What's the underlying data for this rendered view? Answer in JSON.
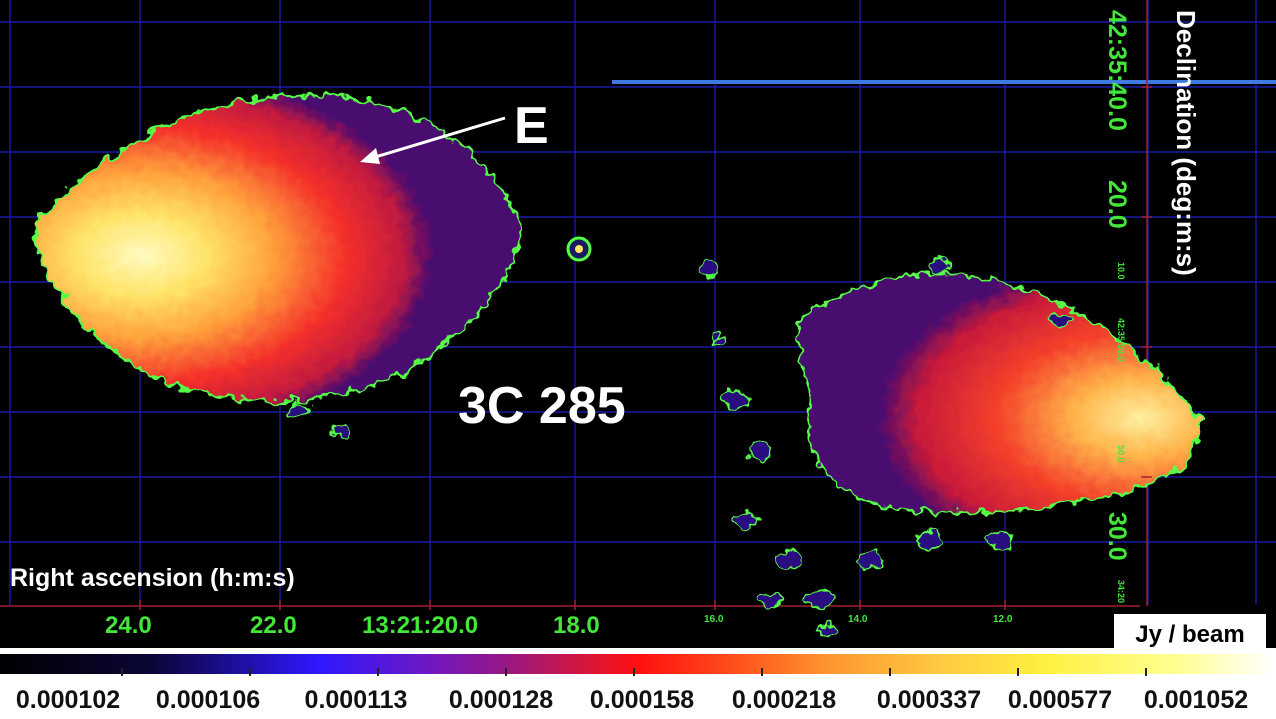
{
  "image": {
    "object_label": "3C 285",
    "feature_label": "E",
    "ra_axis_title": "Right ascension (h:m:s)",
    "dec_axis_title": "Declination (deg:m:s)",
    "ra_ticks_major": [
      "24.0",
      "22.0",
      "13:21:20.0",
      "18.0"
    ],
    "ra_ticks_small": [
      "16.0",
      "14.0",
      "12.0"
    ],
    "dec_ticks_major": [
      "42:35:40.0",
      "20.0",
      "30.0"
    ],
    "dec_ticks_small": [
      "10.0",
      "42:35:00.0",
      "50.0",
      "34:20"
    ],
    "colorbar_units": "Jy / beam",
    "colorbar_ticks": [
      "0.000102",
      "0.000106",
      "0.000113",
      "0.000128",
      "0.000158",
      "0.000218",
      "0.000337",
      "0.000577",
      "0.001052"
    ],
    "colors": {
      "background": "#000000",
      "grid": "#1a1aa8",
      "contour": "#55ff44",
      "axis_label": "#44e63a",
      "text": "#ffffff"
    }
  }
}
